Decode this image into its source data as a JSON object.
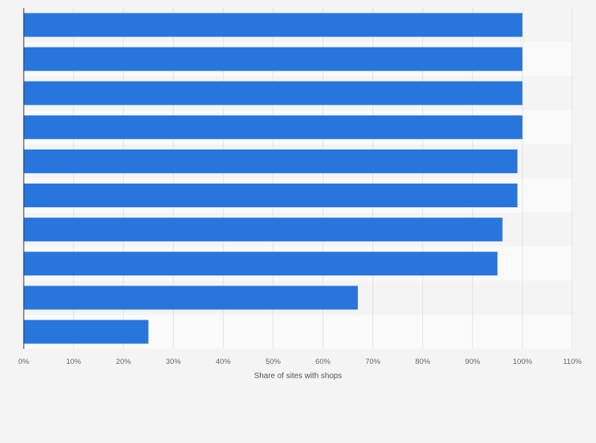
{
  "chart_data": {
    "type": "bar",
    "orientation": "horizontal",
    "title": "",
    "xlabel": "Share of sites with shops",
    "ylabel": "",
    "categories": [
      "",
      "",
      "",
      "",
      "",
      "",
      "",
      "",
      "",
      ""
    ],
    "values": [
      100,
      100,
      100,
      100,
      99,
      99,
      96,
      95,
      67,
      25
    ],
    "unit": "%",
    "xlim": [
      0,
      110
    ],
    "ticks": [
      0,
      10,
      20,
      30,
      40,
      50,
      60,
      70,
      80,
      90,
      100,
      110
    ],
    "tick_labels": [
      "0%",
      "10%",
      "20%",
      "30%",
      "40%",
      "50%",
      "60%",
      "70%",
      "80%",
      "90%",
      "100%",
      "110%"
    ],
    "grid": true,
    "bar_color": "#2876dd",
    "band_colors": [
      "#f4f4f4",
      "#fafafa"
    ],
    "grid_color": "#e3e3e3"
  }
}
